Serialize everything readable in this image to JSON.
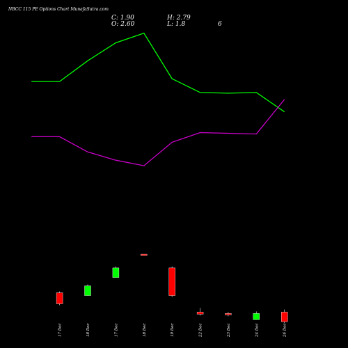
{
  "header": {
    "title": "NBCC 115 PE Options  Chart MunafaSutra.com",
    "close_label": "C: 1.90",
    "open_label": "O: 2.60",
    "high_label": "H: 2.79",
    "low_label": "L: 1.8",
    "extra_label": "6"
  },
  "colors": {
    "background": "#000000",
    "up": "#00ff00",
    "down": "#ff0000",
    "upper_band": "#00ff00",
    "lower_band": "#cc00cc"
  },
  "chart_data": {
    "type": "candlestick",
    "categories": [
      "17 Dec",
      "18 Dec",
      "17 Dec",
      "18 Dec",
      "19 Dec",
      "22 Dec",
      "23 Dec",
      "24 Dec",
      "26 Dec"
    ],
    "candles": [
      {
        "date": "17 Dec",
        "open": 4.0,
        "high": 4.1,
        "low": 3.1,
        "close": 3.2
      },
      {
        "date": "18 Dec",
        "open": 3.8,
        "high": 4.6,
        "low": 3.8,
        "close": 4.5
      },
      {
        "date": "17 Dec",
        "open": 5.1,
        "high": 5.9,
        "low": 5.1,
        "close": 5.8
      },
      {
        "date": "18 Dec",
        "open": 6.8,
        "high": 6.8,
        "low": 6.7,
        "close": 6.7
      },
      {
        "date": "19 Dec",
        "open": 5.8,
        "high": 5.9,
        "low": 3.7,
        "close": 3.8
      },
      {
        "date": "22 Dec",
        "open": 2.6,
        "high": 2.9,
        "low": 2.35,
        "close": 2.45
      },
      {
        "date": "23 Dec",
        "open": 2.5,
        "high": 2.6,
        "low": 2.3,
        "close": 2.4
      },
      {
        "date": "24 Dec",
        "open": 2.05,
        "high": 2.65,
        "low": 2.05,
        "close": 2.5
      },
      {
        "date": "26 Dec",
        "open": 2.6,
        "high": 2.79,
        "low": 1.8,
        "close": 1.9
      }
    ],
    "upper_band": [
      {
        "x": 0,
        "y": 19.3
      },
      {
        "x": 2,
        "y": 19.3
      },
      {
        "x": 4,
        "y": 20.8
      },
      {
        "x": 6,
        "y": 22.1
      },
      {
        "x": 8,
        "y": 22.8
      },
      {
        "x": 10,
        "y": 19.5
      },
      {
        "x": 12,
        "y": 18.5
      },
      {
        "x": 14,
        "y": 18.45
      },
      {
        "x": 16,
        "y": 18.5
      },
      {
        "x": 18,
        "y": 17.1
      }
    ],
    "lower_band": [
      {
        "x": 0,
        "y": 15.3
      },
      {
        "x": 2,
        "y": 15.3
      },
      {
        "x": 4,
        "y": 14.2
      },
      {
        "x": 6,
        "y": 13.6
      },
      {
        "x": 8,
        "y": 13.2
      },
      {
        "x": 10,
        "y": 14.9
      },
      {
        "x": 12,
        "y": 15.6
      },
      {
        "x": 14,
        "y": 15.55
      },
      {
        "x": 16,
        "y": 15.5
      },
      {
        "x": 18,
        "y": 18.0
      }
    ],
    "ylim": [
      0,
      25.2
    ],
    "xlim": [
      -2.24,
      22.52
    ],
    "grid": false,
    "legend": "none"
  }
}
